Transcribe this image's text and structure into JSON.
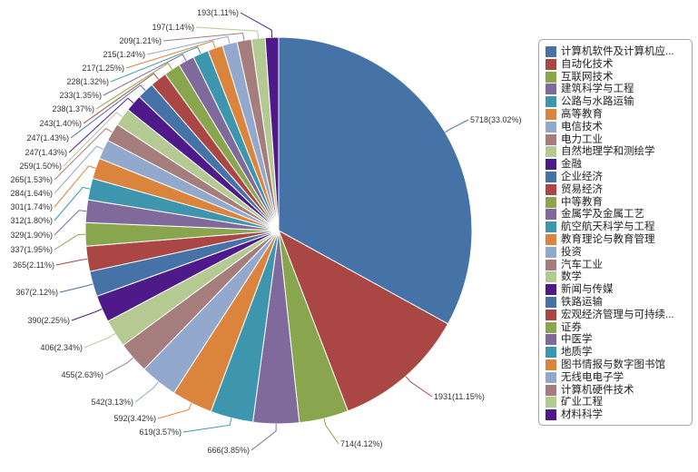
{
  "chart_data": {
    "type": "pie",
    "legend_position": "right",
    "slices": [
      {
        "name": "计算机软件及计算机应...",
        "value": 5718,
        "label": "5718(33.02%)",
        "color": "#4572a7"
      },
      {
        "name": "自动化技术",
        "value": 1931,
        "label": "1931(11.15%)",
        "color": "#aa4643"
      },
      {
        "name": "互联网技术",
        "value": 714,
        "label": "714(4.12%)",
        "color": "#89a54e"
      },
      {
        "name": "建筑科学与工程",
        "value": 666,
        "label": "666(3.85%)",
        "color": "#80699b"
      },
      {
        "name": "公路与水路运输",
        "value": 619,
        "label": "619(3.57%)",
        "color": "#3d96ae"
      },
      {
        "name": "高等教育",
        "value": 592,
        "label": "592(3.42%)",
        "color": "#db843d"
      },
      {
        "name": "电信技术",
        "value": 542,
        "label": "542(3.13%)",
        "color": "#92a8cd"
      },
      {
        "name": "电力工业",
        "value": 455,
        "label": "455(2.63%)",
        "color": "#a47d7c"
      },
      {
        "name": "自然地理学和测绘学",
        "value": 406,
        "label": "406(2.34%)",
        "color": "#b5ca92"
      },
      {
        "name": "金融",
        "value": 390,
        "label": "390(2.25%)",
        "color": "#4e1a8a"
      },
      {
        "name": "企业经济",
        "value": 367,
        "label": "367(2.12%)",
        "color": "#4572a7"
      },
      {
        "name": "贸易经济",
        "value": 365,
        "label": "365(2.11%)",
        "color": "#aa4643"
      },
      {
        "name": "中等教育",
        "value": 337,
        "label": "337(1.95%)",
        "color": "#89a54e"
      },
      {
        "name": "金属学及金属工艺",
        "value": 329,
        "label": "329(1.90%)",
        "color": "#80699b"
      },
      {
        "name": "航空航天科学与工程",
        "value": 312,
        "label": "312(1.80%)",
        "color": "#3d96ae"
      },
      {
        "name": "教育理论与教育管理",
        "value": 301,
        "label": "301(1.74%)",
        "color": "#db843d"
      },
      {
        "name": "投资",
        "value": 284,
        "label": "284(1.64%)",
        "color": "#92a8cd"
      },
      {
        "name": "汽车工业",
        "value": 265,
        "label": "265(1.53%)",
        "color": "#a47d7c"
      },
      {
        "name": "数学",
        "value": 259,
        "label": "259(1.50%)",
        "color": "#b5ca92"
      },
      {
        "name": "新闻与传媒",
        "value": 247,
        "label": "247(1.43%)",
        "color": "#4e1a8a"
      },
      {
        "name": "铁路运输",
        "value": 247,
        "label": "247(1.43%)",
        "color": "#4572a7"
      },
      {
        "name": "宏观经济管理与可持续...",
        "value": 243,
        "label": "243(1.40%)",
        "color": "#aa4643"
      },
      {
        "name": "证券",
        "value": 238,
        "label": "238(1.37%)",
        "color": "#89a54e"
      },
      {
        "name": "中医学",
        "value": 233,
        "label": "233(1.35%)",
        "color": "#80699b"
      },
      {
        "name": "地质学",
        "value": 228,
        "label": "228(1.32%)",
        "color": "#3d96ae"
      },
      {
        "name": "图书情报与数字图书馆",
        "value": 217,
        "label": "217(1.25%)",
        "color": "#db843d"
      },
      {
        "name": "无线电电子学",
        "value": 215,
        "label": "215(1.24%)",
        "color": "#92a8cd"
      },
      {
        "name": "计算机硬件技术",
        "value": 209,
        "label": "209(1.21%)",
        "color": "#a47d7c"
      },
      {
        "name": "矿业工程",
        "value": 197,
        "label": "197(1.14%)",
        "color": "#b5ca92"
      },
      {
        "name": "材料科学",
        "value": 193,
        "label": "193(1.11%)",
        "color": "#4e1a8a"
      }
    ]
  }
}
